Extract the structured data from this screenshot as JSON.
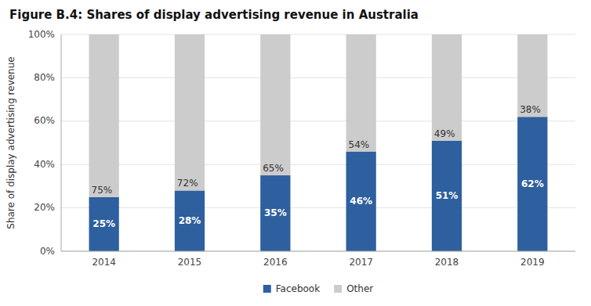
{
  "chart_data": {
    "type": "bar",
    "stacked": true,
    "title": "Figure B.4: Shares of display advertising revenue in Australia",
    "ylabel": "Share of display advertising revenue",
    "categories": [
      "2014",
      "2015",
      "2016",
      "2017",
      "2018",
      "2019"
    ],
    "series": [
      {
        "name": "Facebook",
        "color": "#2E5F9E",
        "values": [
          25,
          28,
          35,
          46,
          51,
          62
        ],
        "value_labels": [
          "25%",
          "28%",
          "35%",
          "46%",
          "51%",
          "62%"
        ]
      },
      {
        "name": "Other",
        "color": "#CCCCCC",
        "values": [
          75,
          72,
          65,
          54,
          49,
          38
        ],
        "value_labels": [
          "75%",
          "72%",
          "65%",
          "54%",
          "49%",
          "38%"
        ]
      }
    ],
    "ylim": [
      0,
      100
    ],
    "yticks": [
      {
        "value": 0,
        "label": "0%"
      },
      {
        "value": 20,
        "label": "20%"
      },
      {
        "value": 40,
        "label": "40%"
      },
      {
        "value": 60,
        "label": "60%"
      },
      {
        "value": 80,
        "label": "80%"
      },
      {
        "value": 100,
        "label": "100%"
      }
    ],
    "grid": true,
    "legend": "bottom",
    "data_labels": true
  }
}
